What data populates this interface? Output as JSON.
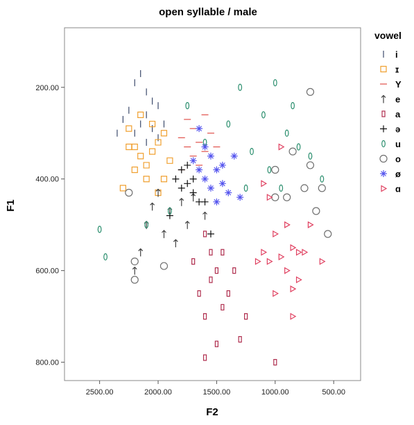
{
  "chart_data": {
    "type": "scatter",
    "title": "open syllable / male",
    "x_label": "F2",
    "y_label": "F1",
    "legend_title": "vowel",
    "xlim": [
      2800,
      270
    ],
    "ylim": [
      70,
      840
    ],
    "xticks": [
      {
        "value": 2500,
        "label": "2500.00"
      },
      {
        "value": 2000,
        "label": "2000.00"
      },
      {
        "value": 1500,
        "label": "1500.00"
      },
      {
        "value": 1000,
        "label": "1000.00"
      },
      {
        "value": 500,
        "label": "500.00"
      }
    ],
    "yticks": [
      {
        "value": 200,
        "label": "200.00"
      },
      {
        "value": 400,
        "label": "400.00"
      },
      {
        "value": 600,
        "label": "600.00"
      },
      {
        "value": 800,
        "label": "800.00"
      }
    ],
    "series": [
      {
        "name": "i",
        "color": "#3b4a6b",
        "marker": "tick",
        "x": [
          2200,
          2150,
          2100,
          2050,
          2250,
          2300,
          2100,
          2000,
          2200,
          2150,
          2050,
          2350,
          2000,
          1950,
          2100
        ],
        "values": [
          190,
          170,
          210,
          230,
          250,
          270,
          260,
          240,
          300,
          280,
          290,
          300,
          310,
          280,
          320
        ]
      },
      {
        "name": "ɪ",
        "color": "#f0a030",
        "marker": "square",
        "x": [
          2250,
          2200,
          2150,
          2100,
          2050,
          2000,
          1950,
          2200,
          2100,
          1900,
          2000,
          2300,
          2150,
          1950,
          2050,
          2250
        ],
        "values": [
          290,
          330,
          350,
          370,
          340,
          320,
          300,
          380,
          400,
          360,
          430,
          420,
          260,
          400,
          280,
          330
        ]
      },
      {
        "name": "Y",
        "color": "#e0504a",
        "marker": "dash",
        "x": [
          1800,
          1700,
          1650,
          1600,
          1750,
          1550,
          1700,
          1800,
          1600,
          1650,
          1750,
          1500
        ],
        "values": [
          310,
          290,
          320,
          340,
          270,
          300,
          350,
          380,
          260,
          370,
          330,
          330
        ]
      },
      {
        "name": "e",
        "color": "#404040",
        "marker": "arrow",
        "x": [
          2000,
          1900,
          2100,
          1800,
          1950,
          2150,
          1850,
          2050,
          1750,
          2200,
          1700,
          1600
        ],
        "values": [
          430,
          470,
          500,
          450,
          520,
          560,
          540,
          460,
          500,
          600,
          440,
          480
        ]
      },
      {
        "name": "a",
        "color": "#b03050",
        "marker": "rect",
        "x": [
          1600,
          1550,
          1500,
          1650,
          1450,
          1550,
          1600,
          1400,
          1500,
          1600,
          1350,
          1450,
          1700,
          1250,
          1300,
          1000
        ],
        "values": [
          520,
          560,
          600,
          650,
          680,
          620,
          700,
          650,
          760,
          790,
          600,
          560,
          580,
          700,
          750,
          800
        ]
      },
      {
        "name": "ə",
        "color": "#101010",
        "marker": "plus",
        "x": [
          1800,
          1750,
          1700,
          1650,
          1850,
          1700,
          1800,
          1600,
          1900,
          1550,
          1750
        ],
        "values": [
          380,
          410,
          430,
          450,
          400,
          400,
          420,
          450,
          480,
          520,
          370
        ]
      },
      {
        "name": "u",
        "color": "#2e9070",
        "marker": "zero",
        "x": [
          1300,
          1000,
          1100,
          900,
          800,
          1200,
          1400,
          1600,
          850,
          1050,
          700,
          1250,
          2500,
          2100,
          1900,
          2450,
          1750,
          950,
          600
        ],
        "values": [
          200,
          190,
          260,
          300,
          330,
          340,
          280,
          320,
          240,
          380,
          350,
          420,
          510,
          500,
          470,
          570,
          240,
          420,
          400
        ]
      },
      {
        "name": "o",
        "color": "#707070",
        "marker": "circle",
        "x": [
          700,
          850,
          1000,
          750,
          900,
          650,
          550,
          600,
          1000,
          2250,
          2200,
          2200,
          1950,
          700
        ],
        "values": [
          210,
          340,
          380,
          420,
          440,
          470,
          520,
          420,
          440,
          430,
          580,
          620,
          590,
          370
        ]
      },
      {
        "name": "ø",
        "color": "#5555ee",
        "marker": "star",
        "x": [
          1650,
          1600,
          1550,
          1500,
          1450,
          1400,
          1350,
          1550,
          1600,
          1700,
          1500,
          1300,
          1450,
          1650
        ],
        "values": [
          290,
          330,
          350,
          380,
          410,
          430,
          350,
          420,
          400,
          360,
          450,
          440,
          370,
          380
        ]
      },
      {
        "name": "ɑ",
        "color": "#e04060",
        "marker": "triangle",
        "x": [
          950,
          1100,
          1050,
          900,
          1000,
          850,
          950,
          800,
          1050,
          900,
          1000,
          850,
          750,
          1150,
          700,
          800,
          850,
          1100,
          600
        ],
        "values": [
          330,
          410,
          440,
          500,
          520,
          550,
          570,
          560,
          580,
          600,
          650,
          640,
          560,
          580,
          500,
          620,
          700,
          560,
          580
        ]
      }
    ]
  }
}
